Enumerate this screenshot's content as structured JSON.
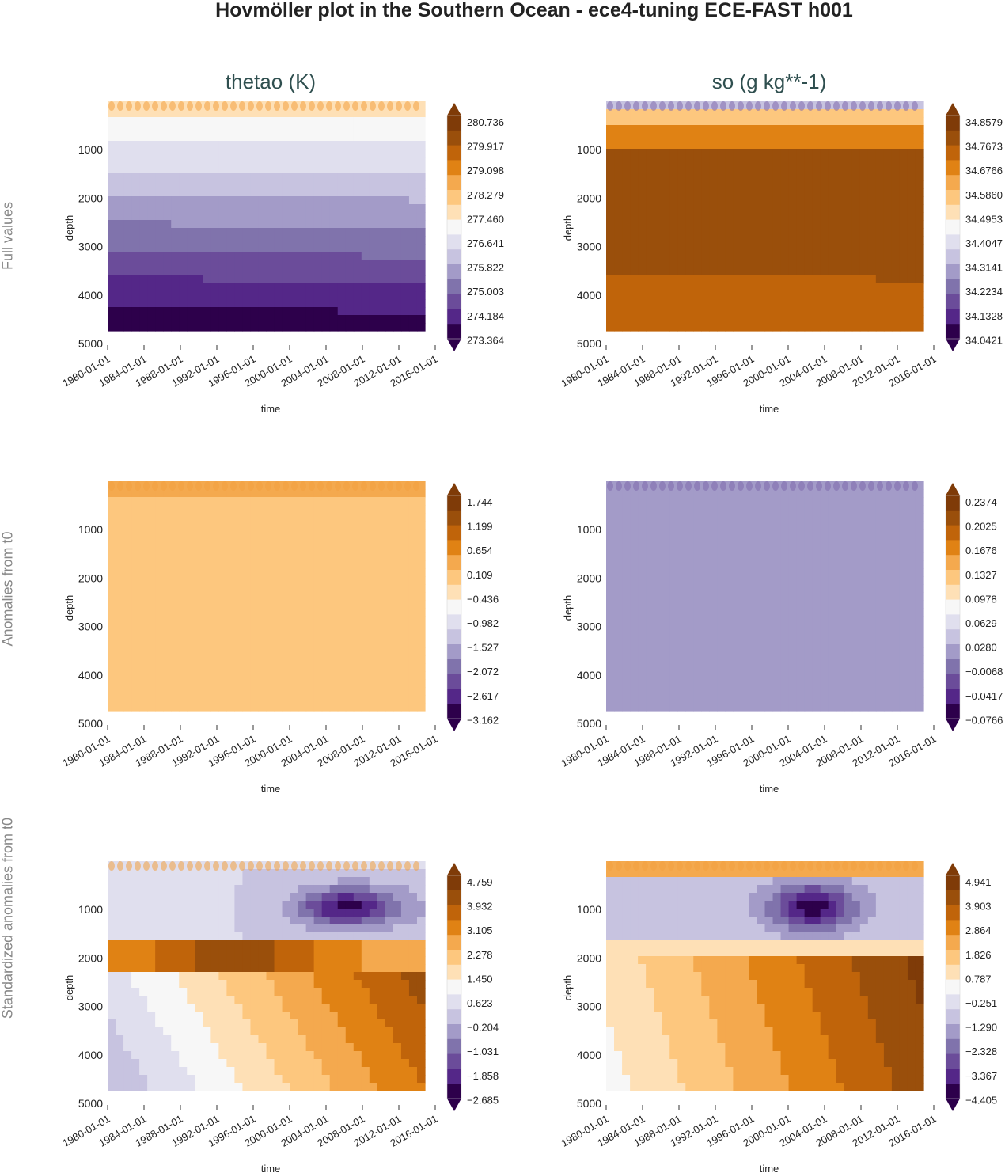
{
  "title": "Hovmöller plot in the Southern Ocean - ece4-tuning ECE-FAST h001",
  "columns": [
    "thetao (K)",
    "so (g kg**-1)"
  ],
  "rows": [
    "Full values",
    "Anomalies from t0",
    "Standardized anomalies from t0"
  ],
  "palette": [
    "#2d004b",
    "#542788",
    "#6b4c9a",
    "#8073ac",
    "#a39bc8",
    "#c7c3e0",
    "#e0dfee",
    "#f7f7f7",
    "#fee0b6",
    "#fdc77e",
    "#f4a94e",
    "#e08214",
    "#c0640a",
    "#9a4f0b",
    "#7f3b08"
  ],
  "chart_data": [
    {
      "type": "heatmap",
      "variable": "thetao (K)",
      "row": "Full values",
      "xlabel": "time",
      "ylabel": "depth",
      "xticks": [
        "1980-01-01",
        "1984-01-01",
        "1988-01-01",
        "1992-01-01",
        "1996-01-01",
        "2000-01-01",
        "2004-01-01",
        "2008-01-01",
        "2012-01-01",
        "2016-01-01"
      ],
      "yticks": [
        1000,
        2000,
        3000,
        4000,
        5000
      ],
      "ylim": [
        5000,
        0
      ],
      "colorbar_ticks": [
        "280.736",
        "279.917",
        "279.098",
        "278.279",
        "277.460",
        "276.641",
        "275.822",
        "275.003",
        "274.184",
        "273.364"
      ]
    },
    {
      "type": "heatmap",
      "variable": "so (g kg**-1)",
      "row": "Full values",
      "xlabel": "time",
      "ylabel": "depth",
      "xticks": [
        "1980-01-01",
        "1984-01-01",
        "1988-01-01",
        "1992-01-01",
        "1996-01-01",
        "2000-01-01",
        "2004-01-01",
        "2008-01-01",
        "2012-01-01",
        "2016-01-01"
      ],
      "yticks": [
        1000,
        2000,
        3000,
        4000,
        5000
      ],
      "ylim": [
        5000,
        0
      ],
      "colorbar_ticks": [
        "34.8579",
        "34.7673",
        "34.6766",
        "34.5860",
        "34.4953",
        "34.4047",
        "34.3141",
        "34.2234",
        "34.1328",
        "34.0421"
      ]
    },
    {
      "type": "heatmap",
      "variable": "thetao (K)",
      "row": "Anomalies from t0",
      "xlabel": "time",
      "ylabel": "depth",
      "xticks": [
        "1980-01-01",
        "1984-01-01",
        "1988-01-01",
        "1992-01-01",
        "1996-01-01",
        "2000-01-01",
        "2004-01-01",
        "2008-01-01",
        "2012-01-01",
        "2016-01-01"
      ],
      "yticks": [
        1000,
        2000,
        3000,
        4000,
        5000
      ],
      "ylim": [
        5000,
        0
      ],
      "colorbar_ticks": [
        "1.744",
        "1.199",
        "0.654",
        "0.109",
        "−0.436",
        "−0.982",
        "−1.527",
        "−2.072",
        "−2.617",
        "−3.162"
      ]
    },
    {
      "type": "heatmap",
      "variable": "so (g kg**-1)",
      "row": "Anomalies from t0",
      "xlabel": "time",
      "ylabel": "depth",
      "xticks": [
        "1980-01-01",
        "1984-01-01",
        "1988-01-01",
        "1992-01-01",
        "1996-01-01",
        "2000-01-01",
        "2004-01-01",
        "2008-01-01",
        "2012-01-01",
        "2016-01-01"
      ],
      "yticks": [
        1000,
        2000,
        3000,
        4000,
        5000
      ],
      "ylim": [
        5000,
        0
      ],
      "colorbar_ticks": [
        "0.2374",
        "0.2025",
        "0.1676",
        "0.1327",
        "0.0978",
        "0.0629",
        "0.0280",
        "−0.0068",
        "−0.0417",
        "−0.0766"
      ]
    },
    {
      "type": "heatmap",
      "variable": "thetao (K)",
      "row": "Standardized anomalies from t0",
      "xlabel": "time",
      "ylabel": "depth",
      "xticks": [
        "1980-01-01",
        "1984-01-01",
        "1988-01-01",
        "1992-01-01",
        "1996-01-01",
        "2000-01-01",
        "2004-01-01",
        "2008-01-01",
        "2012-01-01",
        "2016-01-01"
      ],
      "yticks": [
        1000,
        2000,
        3000,
        4000,
        5000
      ],
      "ylim": [
        5000,
        0
      ],
      "colorbar_ticks": [
        "4.759",
        "3.932",
        "3.105",
        "2.278",
        "1.450",
        "0.623",
        "−0.204",
        "−1.031",
        "−1.858",
        "−2.685"
      ]
    },
    {
      "type": "heatmap",
      "variable": "so (g kg**-1)",
      "row": "Standardized anomalies from t0",
      "xlabel": "time",
      "ylabel": "depth",
      "xticks": [
        "1980-01-01",
        "1984-01-01",
        "1988-01-01",
        "1992-01-01",
        "1996-01-01",
        "2000-01-01",
        "2004-01-01",
        "2008-01-01",
        "2012-01-01",
        "2016-01-01"
      ],
      "yticks": [
        1000,
        2000,
        3000,
        4000,
        5000
      ],
      "ylim": [
        5000,
        0
      ],
      "colorbar_ticks": [
        "4.941",
        "3.903",
        "2.864",
        "1.826",
        "0.787",
        "−0.251",
        "−1.290",
        "−2.328",
        "−3.367",
        "−4.405"
      ]
    }
  ]
}
